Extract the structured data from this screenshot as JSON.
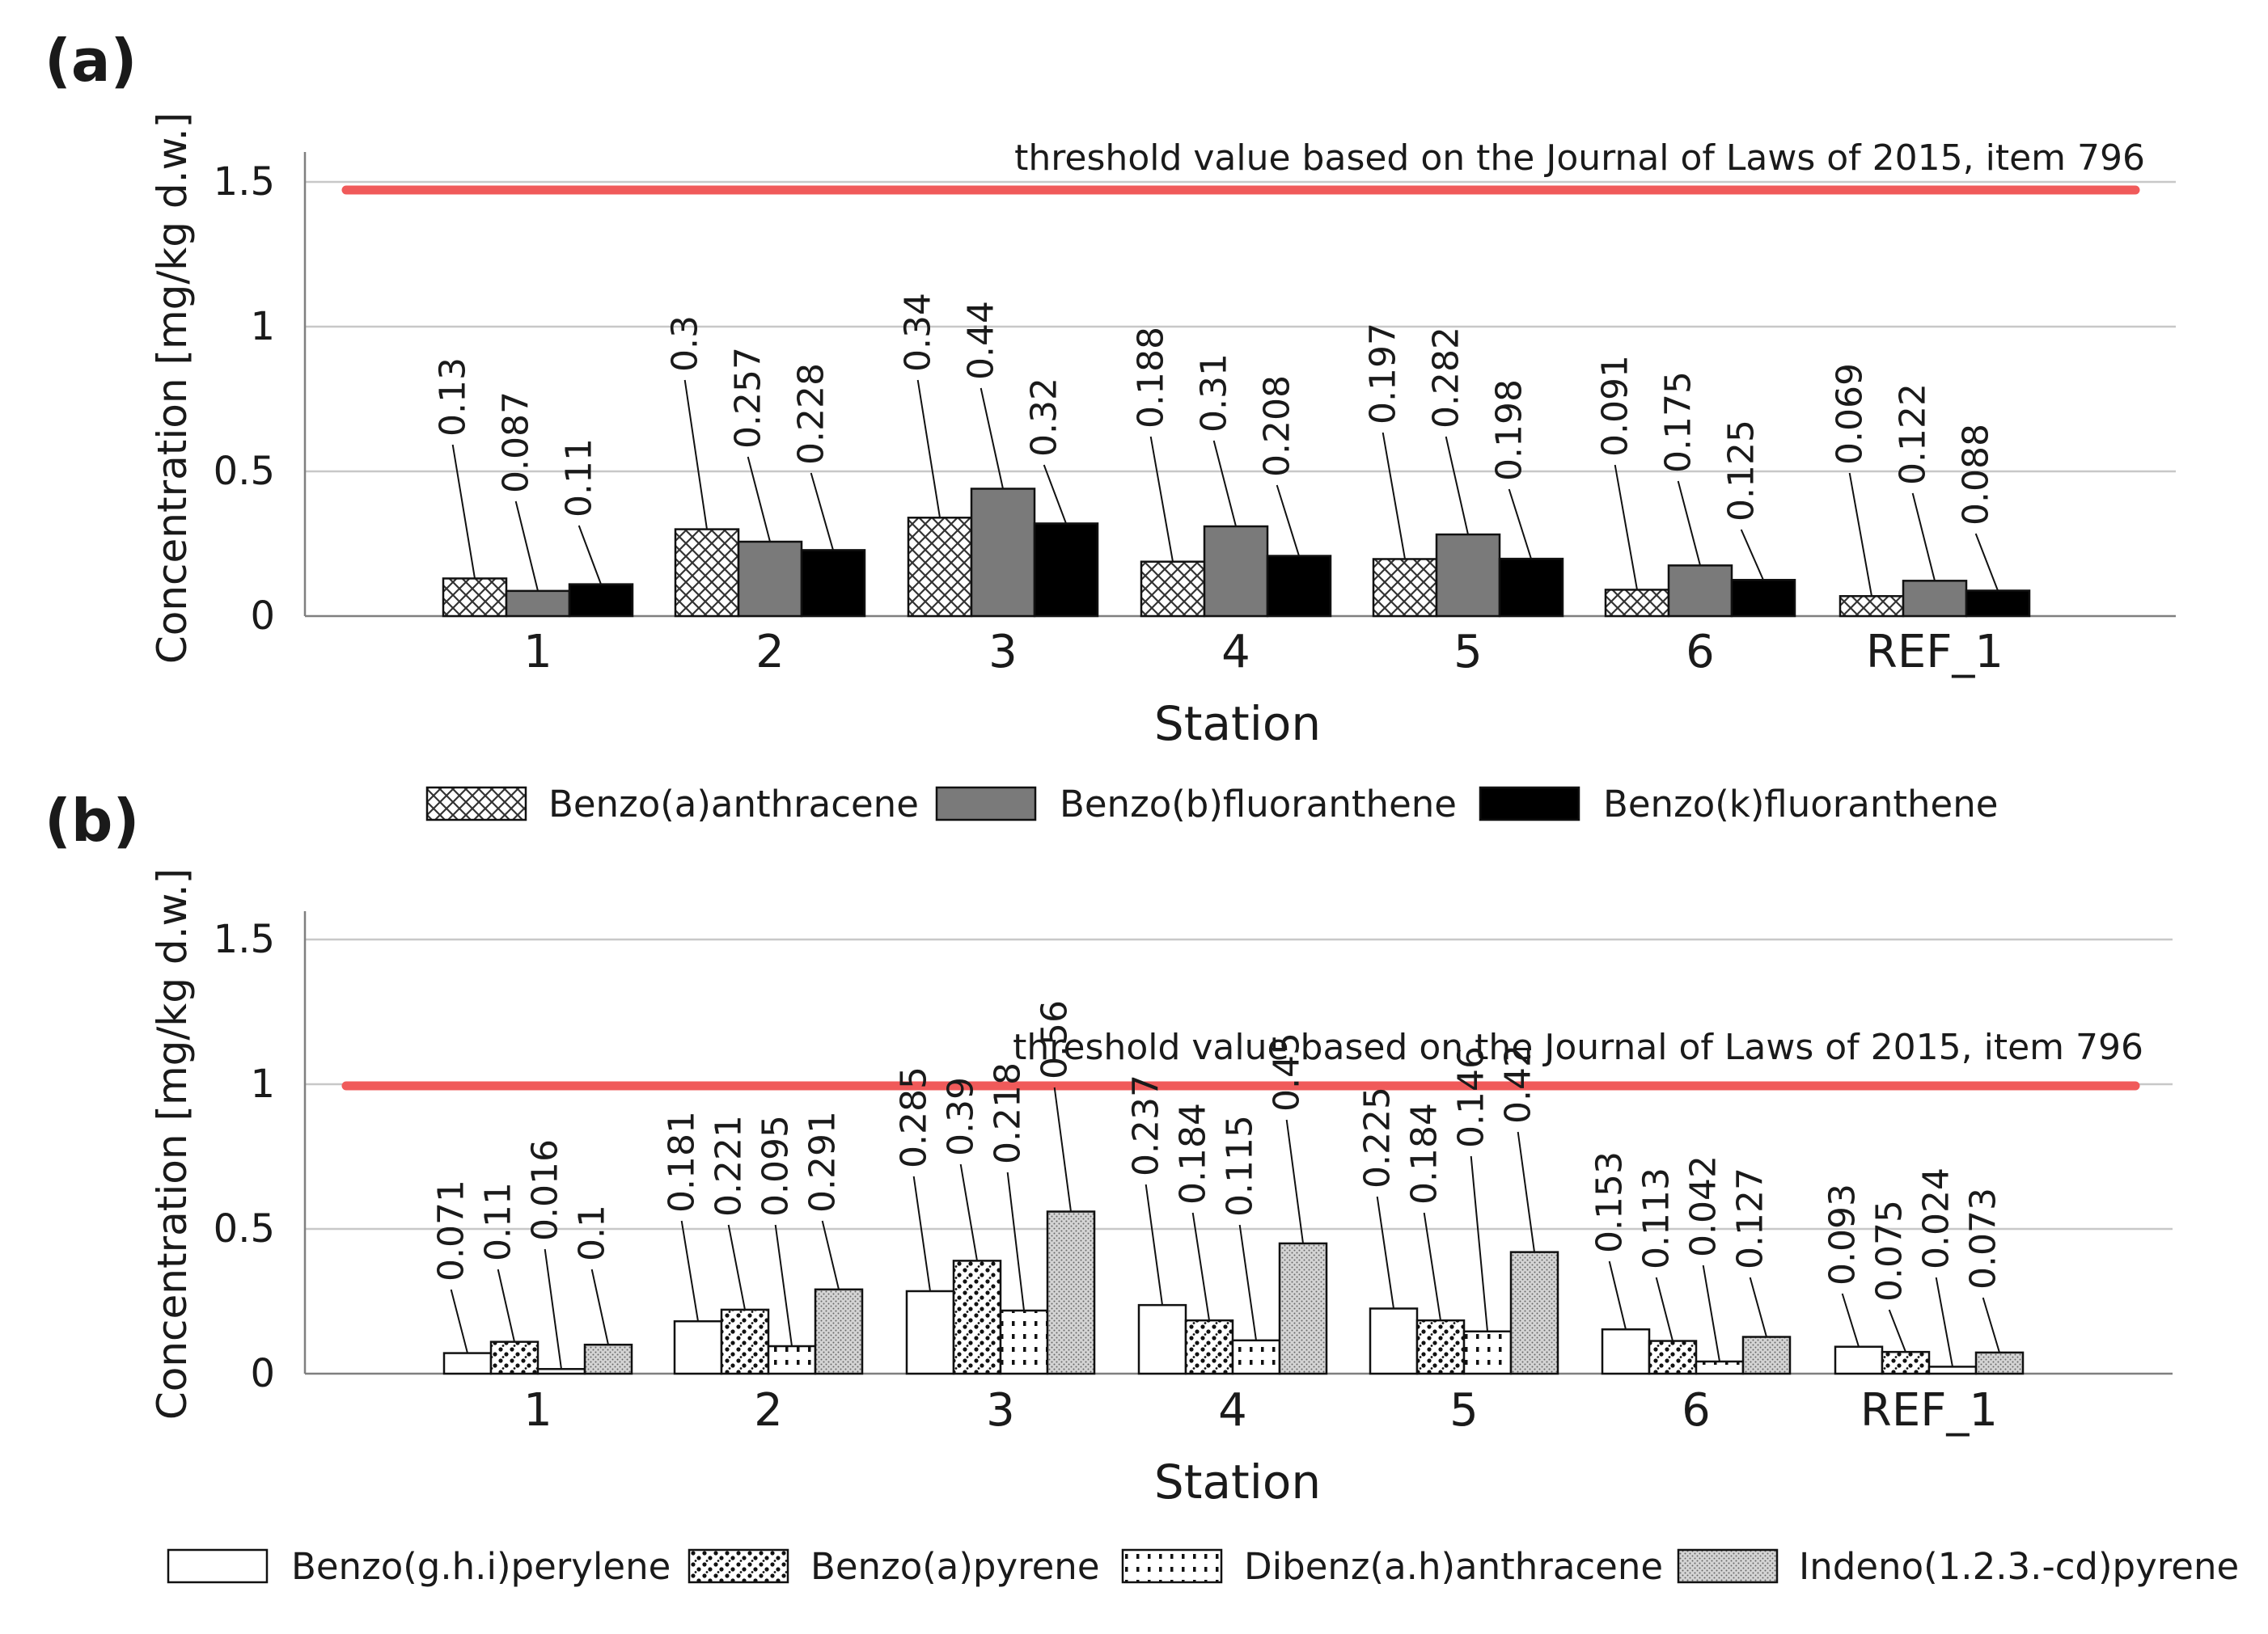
{
  "colors": {
    "threshold": "#f05a5a",
    "grid": "#c8c8c8",
    "axis": "#7f7f7f",
    "bar_gray": "#7a7a7a",
    "bar_black": "#000000",
    "bar_white": "#ffffff"
  },
  "chart_data": [
    {
      "panel": "(a)",
      "type": "bar",
      "xlabel": "Station",
      "ylabel": "Concentration [mg/kg d.w.]",
      "ylim": [
        0,
        1.5
      ],
      "yticks": [
        "0",
        "0.5",
        "1",
        "1.5"
      ],
      "grid": true,
      "legend_position": "bottom",
      "categories": [
        "1",
        "2",
        "3",
        "4",
        "5",
        "6",
        "REF_1"
      ],
      "series": [
        {
          "name": "Benzo(a)anthracene",
          "pattern": "crosshatch",
          "values": [
            0.13,
            0.3,
            0.34,
            0.188,
            0.197,
            0.091,
            0.069
          ],
          "labels": [
            "0.13",
            "0.3",
            "0.34",
            "0.188",
            "0.197",
            "0.091",
            "0.069"
          ]
        },
        {
          "name": "Benzo(b)fluoranthene",
          "pattern": "gray",
          "values": [
            0.087,
            0.257,
            0.44,
            0.31,
            0.282,
            0.175,
            0.122
          ],
          "labels": [
            "0.087",
            "0.257",
            "0.44",
            "0.31",
            "0.282",
            "0.175",
            "0.122"
          ]
        },
        {
          "name": "Benzo(k)fluoranthene",
          "pattern": "black",
          "values": [
            0.11,
            0.228,
            0.32,
            0.208,
            0.198,
            0.125,
            0.088
          ],
          "labels": [
            "0.11",
            "0.228",
            "0.32",
            "0.208",
            "0.198",
            "0.125",
            "0.088"
          ]
        }
      ],
      "threshold": {
        "value": 1.5,
        "label": "threshold value based on the Journal of Laws of 2015, item 796"
      }
    },
    {
      "panel": "(b)",
      "type": "bar",
      "xlabel": "Station",
      "ylabel": "Concentration [mg/kg d.w.]",
      "ylim": [
        0,
        1.5
      ],
      "yticks": [
        "0",
        "0.5",
        "1",
        "1.5"
      ],
      "grid": true,
      "legend_position": "bottom",
      "categories": [
        "1",
        "2",
        "3",
        "4",
        "5",
        "6",
        "REF_1"
      ],
      "series": [
        {
          "name": "Benzo(g.h.i)perylene",
          "pattern": "white",
          "values": [
            0.071,
            0.181,
            0.285,
            0.237,
            0.225,
            0.153,
            0.093
          ],
          "labels": [
            "0.071",
            "0.181",
            "0.285",
            "0.237",
            "0.225",
            "0.153",
            "0.093"
          ]
        },
        {
          "name": "Benzo(a)pyrene",
          "pattern": "dots",
          "values": [
            0.11,
            0.221,
            0.39,
            0.184,
            0.184,
            0.113,
            0.075
          ],
          "labels": [
            "0.11",
            "0.221",
            "0.39",
            "0.184",
            "0.184",
            "0.113",
            "0.075"
          ]
        },
        {
          "name": "Dibenz(a.h)anthracene",
          "pattern": "dashes",
          "values": [
            0.016,
            0.095,
            0.218,
            0.115,
            0.146,
            0.042,
            0.024
          ],
          "labels": [
            "0.016",
            "0.095",
            "0.218",
            "0.115",
            "0.146",
            "0.042",
            "0.024"
          ]
        },
        {
          "name": "Indeno(1.2.3.-cd)pyrene",
          "pattern": "stipple",
          "values": [
            0.1,
            0.291,
            0.56,
            0.45,
            0.42,
            0.127,
            0.073
          ],
          "labels": [
            "0.1",
            "0.291",
            "0.56",
            "0.45",
            "0.42",
            "0.127",
            "0.073"
          ]
        }
      ],
      "threshold": {
        "value": 1.0,
        "label": "threshold value based on the Journal of Laws of 2015, item 796"
      }
    }
  ]
}
